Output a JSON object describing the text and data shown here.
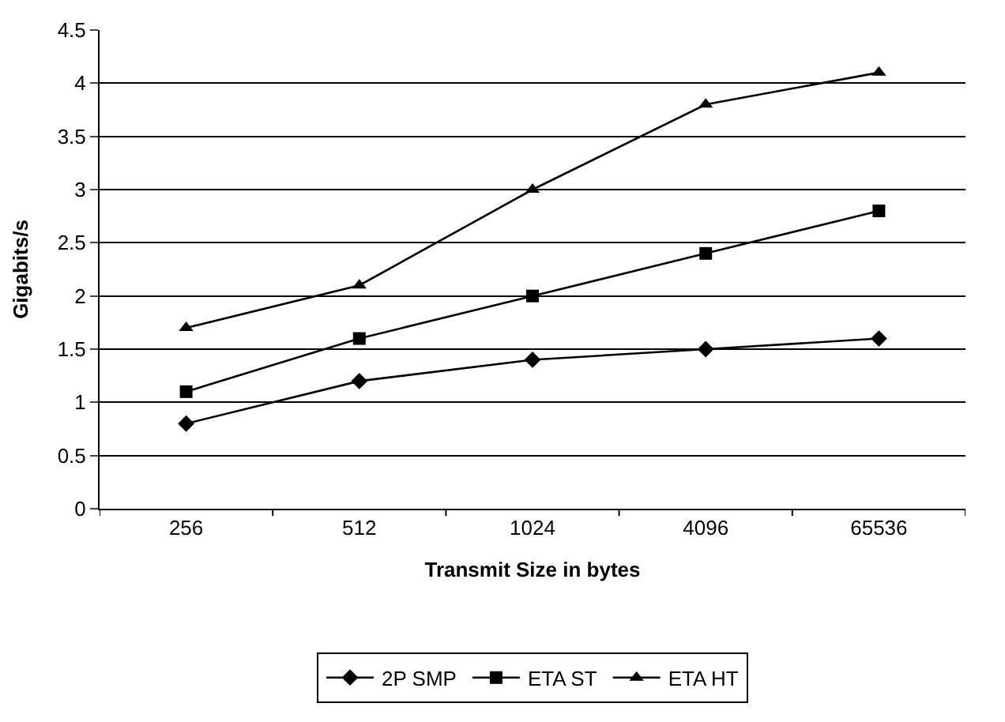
{
  "chart_data": {
    "type": "line",
    "xlabel": "Transmit Size in bytes",
    "ylabel": "Gigabits/s",
    "categories": [
      "256",
      "512",
      "1024",
      "4096",
      "65536"
    ],
    "series": [
      {
        "name": "2P SMP",
        "color": "#000000",
        "marker": "diamond",
        "values": [
          0.8,
          1.2,
          1.4,
          1.5,
          1.6
        ]
      },
      {
        "name": "ETA ST",
        "color": "#000000",
        "marker": "square",
        "values": [
          1.1,
          1.6,
          2.0,
          2.4,
          2.8
        ]
      },
      {
        "name": "ETA HT",
        "color": "#000000",
        "marker": "triangle",
        "values": [
          1.7,
          2.1,
          3.0,
          3.8,
          4.1
        ]
      }
    ],
    "ylim": [
      0,
      4.5
    ],
    "yticks": [
      0,
      0.5,
      1,
      1.5,
      2,
      2.5,
      3,
      3.5,
      4,
      4.5
    ],
    "grid": "y",
    "legend": "bottom",
    "line_style": "solid"
  }
}
